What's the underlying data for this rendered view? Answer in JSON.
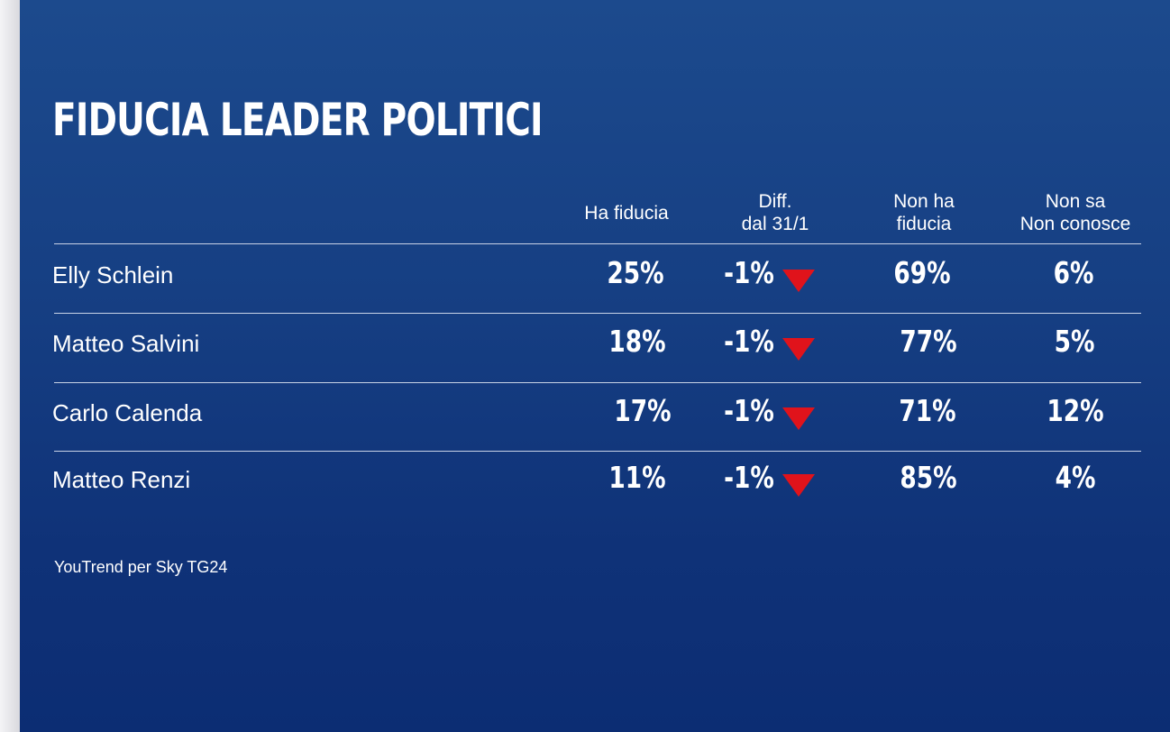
{
  "colors": {
    "background": "#163f83",
    "text": "#ffffff",
    "down_arrow": "#e0131b"
  },
  "chart_data": {
    "type": "table",
    "title": "FIDUCIA LEADER POLITICI",
    "columns": [
      "Ha fiducia",
      "Diff.\ndal 31/1",
      "Non ha\nfiducia",
      "Non sa\nNon conosce"
    ],
    "rows": [
      {
        "name": "Elly Schlein",
        "ha_fiducia": "25%",
        "diff": "-1%",
        "trend": "down",
        "non_ha_fiducia": "69%",
        "non_sa": "6%"
      },
      {
        "name": "Matteo Salvini",
        "ha_fiducia": "18%",
        "diff": "-1%",
        "trend": "down",
        "non_ha_fiducia": "77%",
        "non_sa": "5%"
      },
      {
        "name": "Carlo Calenda",
        "ha_fiducia": "17%",
        "diff": "-1%",
        "trend": "down",
        "non_ha_fiducia": "71%",
        "non_sa": "12%"
      },
      {
        "name": "Matteo Renzi",
        "ha_fiducia": "11%",
        "diff": "-1%",
        "trend": "down",
        "non_ha_fiducia": "85%",
        "non_sa": "4%"
      }
    ],
    "source": "YouTrend per Sky TG24"
  }
}
